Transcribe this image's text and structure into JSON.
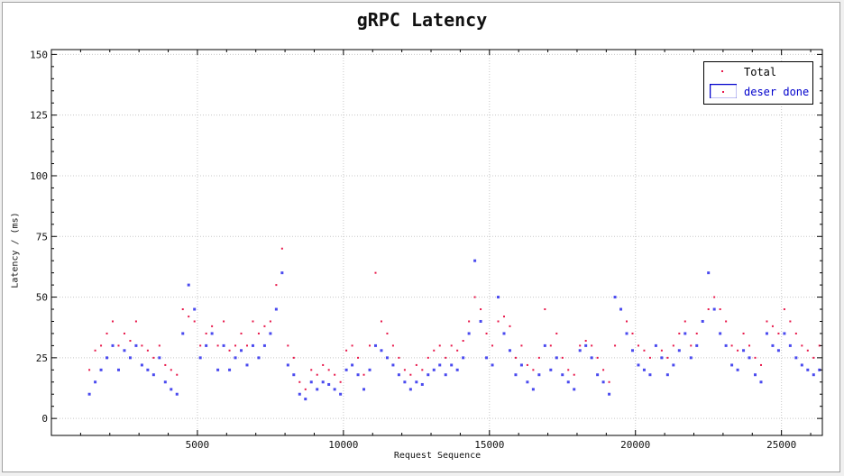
{
  "chart_data": {
    "type": "scatter",
    "title": "gRPC Latency",
    "xlabel": "Request Sequence",
    "ylabel": "Latency / (ms)",
    "xlim": [
      0,
      26400
    ],
    "ylim": [
      -7,
      152
    ],
    "xticks": [
      5000,
      10000,
      15000,
      20000,
      25000
    ],
    "yticks": [
      0,
      25,
      50,
      75,
      100,
      125,
      150
    ],
    "grid": true,
    "legend_position": "top-right",
    "series": [
      {
        "name": "Total",
        "color": "#e8174a",
        "marker": "dot",
        "x": [
          1300,
          1500,
          1700,
          1900,
          2100,
          2300,
          2500,
          2700,
          2900,
          3100,
          3300,
          3500,
          3700,
          3900,
          4100,
          4300,
          4500,
          4700,
          4900,
          5100,
          5300,
          5500,
          5700,
          5900,
          6100,
          6300,
          6500,
          6700,
          6900,
          7100,
          7300,
          7500,
          7700,
          7900,
          8100,
          8300,
          8500,
          8700,
          8900,
          9100,
          9300,
          9500,
          9700,
          9900,
          10100,
          10300,
          10500,
          10700,
          10900,
          11100,
          11300,
          11500,
          11700,
          11900,
          12100,
          12300,
          12500,
          12700,
          12900,
          13100,
          13300,
          13500,
          13700,
          13900,
          14100,
          14300,
          14500,
          14700,
          14900,
          15100,
          15300,
          15500,
          15700,
          15900,
          16100,
          16300,
          16500,
          16700,
          16900,
          17100,
          17300,
          17500,
          17700,
          17900,
          18100,
          18300,
          18500,
          18700,
          18900,
          19100,
          19300,
          19500,
          19700,
          19900,
          20100,
          20300,
          20500,
          20700,
          20900,
          21100,
          21300,
          21500,
          21700,
          21900,
          22100,
          22300,
          22500,
          22700,
          22900,
          23100,
          23300,
          23500,
          23700,
          23900,
          24100,
          24300,
          24500,
          24700,
          24900,
          25100,
          25300,
          25500,
          25700,
          25900,
          26100,
          26300
        ],
        "y": [
          20,
          28,
          30,
          35,
          40,
          30,
          35,
          32,
          40,
          30,
          28,
          25,
          30,
          22,
          20,
          18,
          45,
          42,
          40,
          30,
          35,
          38,
          30,
          40,
          28,
          30,
          35,
          30,
          40,
          35,
          38,
          40,
          55,
          70,
          30,
          25,
          15,
          12,
          20,
          18,
          22,
          20,
          18,
          15,
          28,
          30,
          25,
          18,
          30,
          60,
          40,
          35,
          30,
          25,
          20,
          18,
          22,
          20,
          25,
          28,
          30,
          25,
          30,
          28,
          32,
          40,
          50,
          45,
          35,
          30,
          40,
          42,
          38,
          25,
          30,
          22,
          20,
          25,
          45,
          30,
          35,
          25,
          20,
          18,
          30,
          32,
          30,
          25,
          20,
          15,
          30,
          45,
          40,
          35,
          30,
          28,
          25,
          30,
          28,
          25,
          30,
          35,
          40,
          30,
          35,
          40,
          45,
          50,
          45,
          40,
          30,
          28,
          35,
          30,
          25,
          22,
          40,
          38,
          35,
          45,
          40,
          35,
          30,
          28,
          25,
          30
        ]
      },
      {
        "name": "deser done",
        "color": "#4a4aef",
        "marker": "square",
        "x": [
          1300,
          1500,
          1700,
          1900,
          2100,
          2300,
          2500,
          2700,
          2900,
          3100,
          3300,
          3500,
          3700,
          3900,
          4100,
          4300,
          4500,
          4700,
          4900,
          5100,
          5300,
          5500,
          5700,
          5900,
          6100,
          6300,
          6500,
          6700,
          6900,
          7100,
          7300,
          7500,
          7700,
          7900,
          8100,
          8300,
          8500,
          8700,
          8900,
          9100,
          9300,
          9500,
          9700,
          9900,
          10100,
          10300,
          10500,
          10700,
          10900,
          11100,
          11300,
          11500,
          11700,
          11900,
          12100,
          12300,
          12500,
          12700,
          12900,
          13100,
          13300,
          13500,
          13700,
          13900,
          14100,
          14300,
          14500,
          14700,
          14900,
          15100,
          15300,
          15500,
          15700,
          15900,
          16100,
          16300,
          16500,
          16700,
          16900,
          17100,
          17300,
          17500,
          17700,
          17900,
          18100,
          18300,
          18500,
          18700,
          18900,
          19100,
          19300,
          19500,
          19700,
          19900,
          20100,
          20300,
          20500,
          20700,
          20900,
          21100,
          21300,
          21500,
          21700,
          21900,
          22100,
          22300,
          22500,
          22700,
          22900,
          23100,
          23300,
          23500,
          23700,
          23900,
          24100,
          24300,
          24500,
          24700,
          24900,
          25100,
          25300,
          25500,
          25700,
          25900,
          26100,
          26300
        ],
        "y": [
          10,
          15,
          20,
          25,
          30,
          20,
          28,
          25,
          30,
          22,
          20,
          18,
          25,
          15,
          12,
          10,
          35,
          55,
          45,
          25,
          30,
          35,
          20,
          30,
          20,
          25,
          28,
          22,
          30,
          25,
          30,
          35,
          45,
          60,
          22,
          18,
          10,
          8,
          15,
          12,
          15,
          14,
          12,
          10,
          20,
          22,
          18,
          12,
          20,
          30,
          28,
          25,
          22,
          18,
          15,
          12,
          15,
          14,
          18,
          20,
          22,
          18,
          22,
          20,
          25,
          35,
          65,
          40,
          25,
          22,
          50,
          35,
          28,
          18,
          22,
          15,
          12,
          18,
          30,
          20,
          25,
          18,
          15,
          12,
          28,
          30,
          25,
          18,
          15,
          10,
          50,
          45,
          35,
          28,
          22,
          20,
          18,
          30,
          25,
          18,
          22,
          28,
          35,
          25,
          30,
          40,
          60,
          45,
          35,
          30,
          22,
          20,
          28,
          25,
          18,
          15,
          35,
          30,
          28,
          35,
          30,
          25,
          22,
          20,
          18,
          20
        ]
      }
    ]
  }
}
